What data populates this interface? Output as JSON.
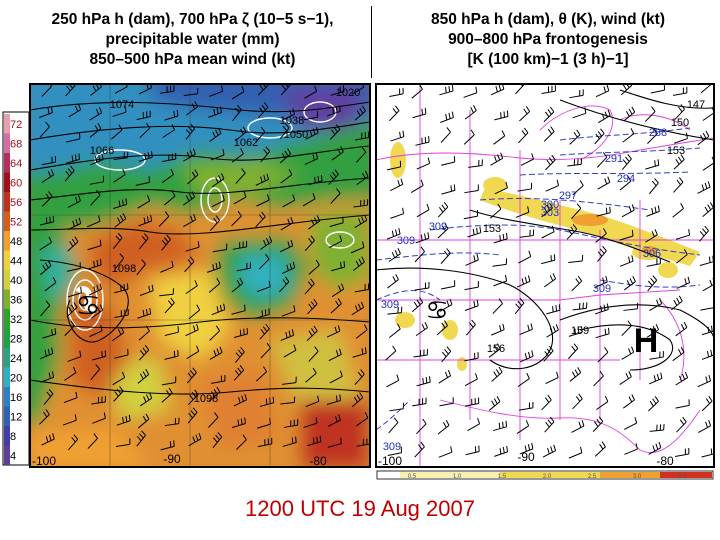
{
  "panels": {
    "left": {
      "title_lines": [
        "250 hPa h (dam), 700 hPa ζ (10−5 s−1),",
        "precipitable water (mm)",
        "850–500 hPa mean wind (kt)"
      ],
      "colorbar_ticks": [
        "72",
        "68",
        "64",
        "60",
        "56",
        "52",
        "48",
        "44",
        "40",
        "36",
        "32",
        "28",
        "24",
        "20",
        "16",
        "12",
        "8",
        "4"
      ],
      "colorbar_colors": [
        "#e8a0b0",
        "#d070a0",
        "#b03060",
        "#a01018",
        "#c03020",
        "#d06020",
        "#f0a030",
        "#f0d040",
        "#d0d040",
        "#80b030",
        "#30a030",
        "#20a040",
        "#30a080",
        "#30b0c0",
        "#3080c0",
        "#3060b0",
        "#4040a0",
        "#604090"
      ],
      "height_labels": [
        "1074",
        "1038",
        "1050",
        "1062",
        "1066",
        "1020",
        "1098",
        "1098"
      ],
      "lon_labels": [
        "-100",
        "-90",
        "-80"
      ],
      "storm_symbol": "♋"
    },
    "right": {
      "title_lines": [
        "850 hPa h (dam), θ (K), wind (kt)",
        "900–800 hPa frontogenesis",
        "[K (100 km)−1 (3 h)−1]"
      ],
      "height_labels": [
        "147",
        "150",
        "153",
        "153",
        "156",
        "159"
      ],
      "theta_labels": [
        "288",
        "291",
        "294",
        "297",
        "300",
        "303",
        "306",
        "309",
        "309",
        "309",
        "309",
        "309"
      ],
      "lon_labels": [
        "-100",
        "-90",
        "-80"
      ],
      "colorbar_ticks": [
        "0.5",
        "1.0",
        "1.5",
        "2.0",
        "2.5",
        "3.0",
        "3.5"
      ],
      "high_label": "H",
      "storm_symbol": "♋"
    }
  },
  "caption": "1200 UTC 19 Aug 2007"
}
